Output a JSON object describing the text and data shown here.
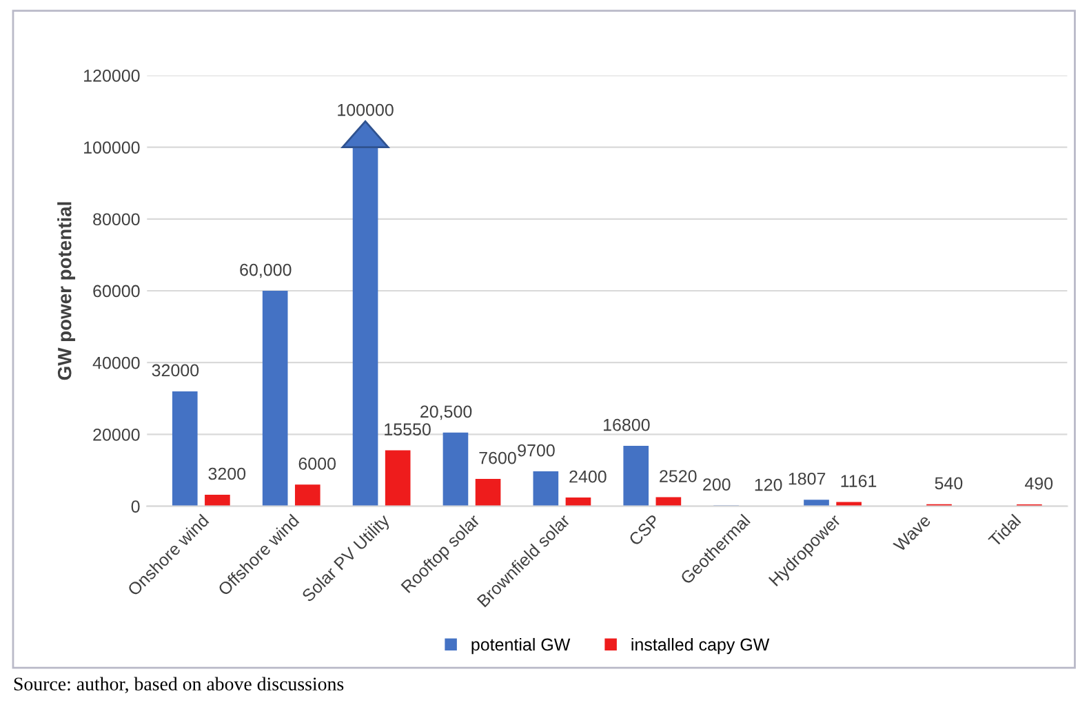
{
  "chart_data": {
    "type": "bar",
    "ylabel": "GW power potential",
    "categories": [
      "Onshore wind",
      "Offshore wind",
      "Solar PV Utility",
      "Rooftop solar",
      "Brownfield solar",
      "CSP",
      "Geothermal",
      "Hydropower",
      "Wave",
      "Tidal"
    ],
    "series": [
      {
        "name": "potential GW",
        "color": "#4472c4",
        "values": [
          32000,
          60000,
          100000,
          20500,
          9700,
          16800,
          200,
          1807,
          null,
          null
        ],
        "value_labels": [
          "32000",
          "60,000",
          "100000",
          "20,500",
          "9700",
          "16800",
          "200",
          "1807",
          null,
          null
        ]
      },
      {
        "name": "installed capy GW",
        "color": "#ee1c1c",
        "values": [
          3200,
          6000,
          15550,
          7600,
          2400,
          2520,
          120,
          1161,
          540,
          490
        ],
        "value_labels": [
          "3200",
          "6000",
          "15550",
          "7600",
          "2400",
          "2520",
          "120",
          "1161",
          "540",
          "490"
        ]
      }
    ],
    "ylim": [
      0,
      120000
    ],
    "yticks": [
      0,
      20000,
      40000,
      60000,
      80000,
      100000,
      120000
    ],
    "grid": "y",
    "legend": "bottom",
    "annotations": [
      "Source: author, based on above discussions"
    ]
  }
}
